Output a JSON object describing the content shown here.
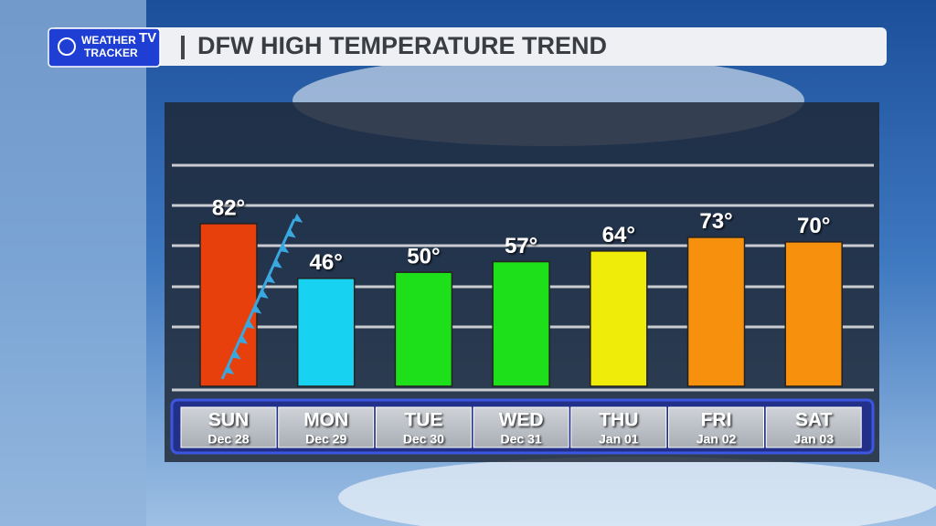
{
  "header": {
    "logo_line1": "WEATHER",
    "logo_line2": "TRACKER",
    "logo_badge": "TV"
  },
  "chart_data": {
    "type": "bar",
    "title": "DFW HIGH TEMPERATURE TREND",
    "categories": [
      "SUN",
      "MON",
      "TUE",
      "WED",
      "THU",
      "FRI",
      "SAT"
    ],
    "dates": [
      "Dec 28",
      "Dec 29",
      "Dec 30",
      "Dec 31",
      "Jan 01",
      "Jan 02",
      "Jan 03"
    ],
    "values": [
      82,
      46,
      50,
      57,
      64,
      73,
      70
    ],
    "value_labels": [
      "82°",
      "46°",
      "50°",
      "57°",
      "64°",
      "73°",
      "70°"
    ],
    "colors": [
      "#e8400c",
      "#18d2f2",
      "#1ee01a",
      "#1ee01a",
      "#f0ec0a",
      "#f7900c",
      "#f7900c"
    ],
    "ylim": [
      -25,
      121
    ]
  }
}
